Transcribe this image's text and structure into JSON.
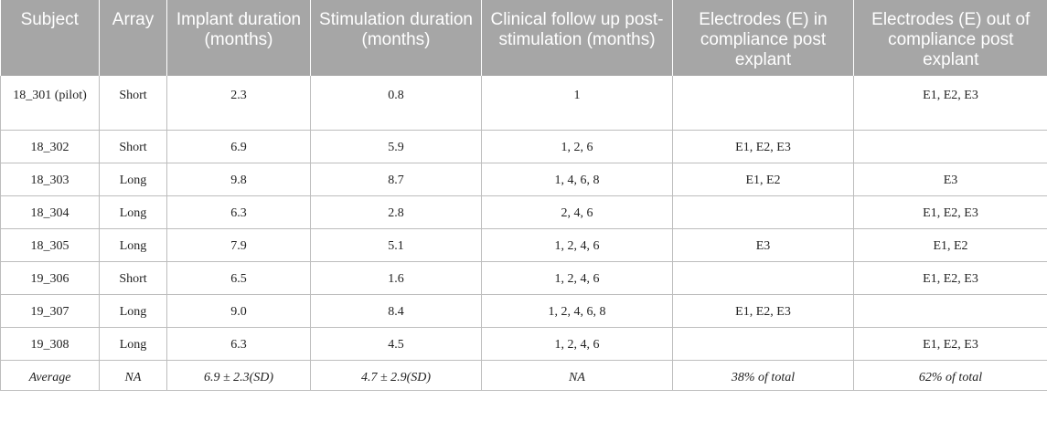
{
  "headers": [
    "Subject",
    "Array",
    "Implant duration (months)",
    "Stimulation duration (months)",
    "Clinical follow up post-stimulation (months)",
    "Electrodes (E) in compliance post explant",
    "Electrodes (E) out of compliance post explant"
  ],
  "rows": [
    [
      "18_301 (pilot)",
      "Short",
      "2.3",
      "0.8",
      "1",
      "",
      "E1, E2, E3"
    ],
    [
      "18_302",
      "Short",
      "6.9",
      "5.9",
      "1, 2, 6",
      "E1, E2, E3",
      ""
    ],
    [
      "18_303",
      "Long",
      "9.8",
      "8.7",
      "1, 4, 6, 8",
      "E1, E2",
      "E3"
    ],
    [
      "18_304",
      "Long",
      "6.3",
      "2.8",
      "2, 4, 6",
      "",
      "E1, E2, E3"
    ],
    [
      "18_305",
      "Long",
      "7.9",
      "5.1",
      "1, 2, 4, 6",
      "E3",
      "E1, E2"
    ],
    [
      "19_306",
      "Short",
      "6.5",
      "1.6",
      "1, 2, 4, 6",
      "",
      "E1, E2, E3"
    ],
    [
      "19_307",
      "Long",
      "9.0",
      "8.4",
      "1, 2, 4, 6, 8",
      "E1, E2, E3",
      ""
    ],
    [
      "19_308",
      "Long",
      "6.3",
      "4.5",
      "1, 2, 4, 6",
      "",
      "E1, E2, E3"
    ],
    [
      "Average",
      "NA",
      "6.9 ± 2.3(SD)",
      "4.7 ± 2.9(SD)",
      "NA",
      "38% of total",
      "62% of total"
    ]
  ]
}
